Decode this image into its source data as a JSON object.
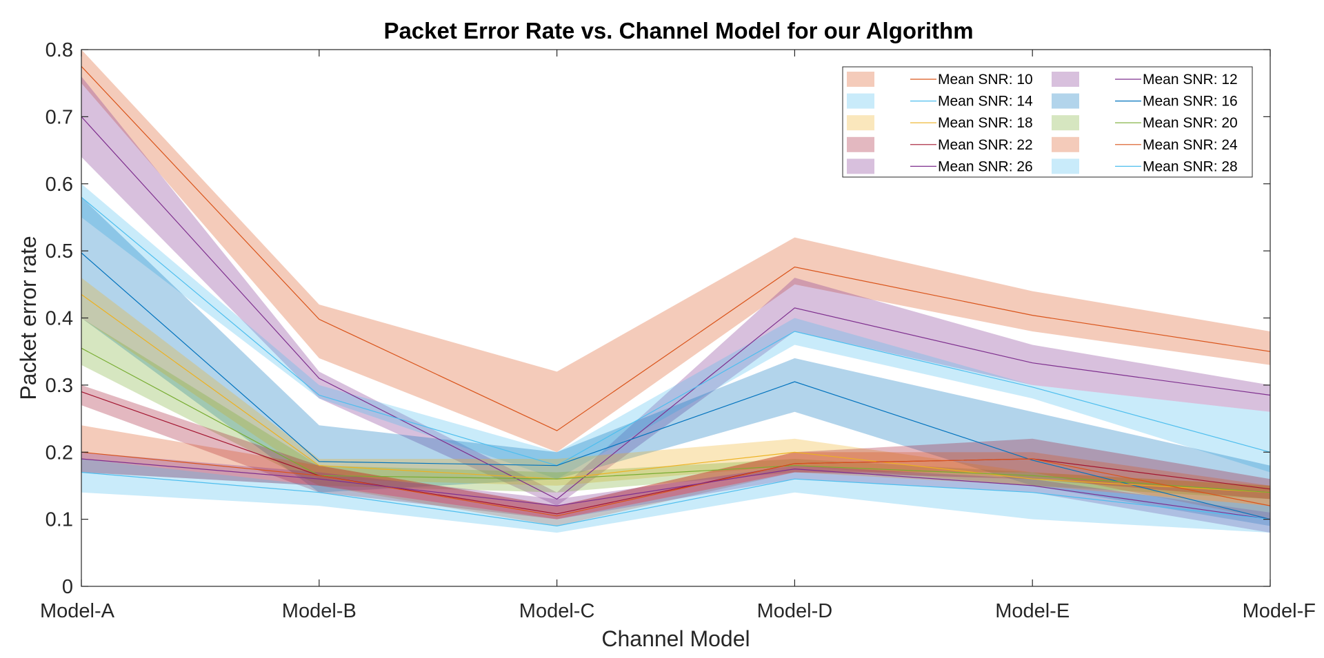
{
  "chart_data": {
    "type": "line",
    "title": "Packet Error Rate vs. Channel Model for our Algorithm",
    "xlabel": "Channel Model",
    "ylabel": "Packet error rate",
    "categories": [
      "Model-A",
      "Model-B",
      "Model-C",
      "Model-D",
      "Model-E",
      "Model-F"
    ],
    "ylim": [
      0,
      0.8
    ],
    "yticks": [
      "0",
      "0.1",
      "0.2",
      "0.3",
      "0.4",
      "0.5",
      "0.6",
      "0.7",
      "0.8"
    ],
    "grid": false,
    "legend_position": "top-right",
    "legend_note": "Each series has a shaded band (range) and a mean line",
    "series": [
      {
        "name": "Mean SNR: 10",
        "color": "#D95319",
        "values": [
          0.775,
          0.398,
          0.232,
          0.476,
          0.404,
          0.35
        ],
        "upper": [
          0.8,
          0.42,
          0.32,
          0.52,
          0.44,
          0.38
        ],
        "lower": [
          0.75,
          0.34,
          0.2,
          0.45,
          0.38,
          0.33
        ]
      },
      {
        "name": "Mean SNR: 12",
        "color": "#7E2F8E",
        "values": [
          0.7,
          0.31,
          0.13,
          0.415,
          0.333,
          0.285
        ],
        "upper": [
          0.76,
          0.32,
          0.14,
          0.46,
          0.36,
          0.3
        ],
        "lower": [
          0.64,
          0.28,
          0.12,
          0.38,
          0.3,
          0.26
        ]
      },
      {
        "name": "Mean SNR: 14",
        "color": "#4DBEEE",
        "values": [
          0.58,
          0.285,
          0.18,
          0.38,
          0.297,
          0.2
        ],
        "upper": [
          0.6,
          0.3,
          0.2,
          0.4,
          0.3,
          0.26
        ],
        "lower": [
          0.55,
          0.28,
          0.16,
          0.36,
          0.28,
          0.17
        ]
      },
      {
        "name": "Mean SNR: 16",
        "color": "#0072BD",
        "values": [
          0.497,
          0.186,
          0.18,
          0.305,
          0.188,
          0.1
        ],
        "upper": [
          0.58,
          0.24,
          0.2,
          0.34,
          0.26,
          0.18
        ],
        "lower": [
          0.4,
          0.14,
          0.16,
          0.26,
          0.15,
          0.09
        ]
      },
      {
        "name": "Mean SNR: 18",
        "color": "#EDB120",
        "values": [
          0.435,
          0.18,
          0.16,
          0.2,
          0.16,
          0.14
        ],
        "upper": [
          0.46,
          0.19,
          0.19,
          0.22,
          0.17,
          0.15
        ],
        "lower": [
          0.4,
          0.16,
          0.15,
          0.18,
          0.15,
          0.12
        ]
      },
      {
        "name": "Mean SNR: 20",
        "color": "#77AC30",
        "values": [
          0.355,
          0.165,
          0.16,
          0.18,
          0.165,
          0.14
        ],
        "upper": [
          0.4,
          0.18,
          0.17,
          0.19,
          0.17,
          0.15
        ],
        "lower": [
          0.33,
          0.15,
          0.14,
          0.17,
          0.15,
          0.13
        ]
      },
      {
        "name": "Mean SNR: 22",
        "color": "#A2142F",
        "values": [
          0.29,
          0.165,
          0.108,
          0.183,
          0.19,
          0.145
        ],
        "upper": [
          0.3,
          0.18,
          0.12,
          0.2,
          0.22,
          0.16
        ],
        "lower": [
          0.27,
          0.14,
          0.1,
          0.17,
          0.16,
          0.13
        ]
      },
      {
        "name": "Mean SNR: 24",
        "color": "#D95319",
        "values": [
          0.2,
          0.165,
          0.105,
          0.183,
          0.19,
          0.12
        ],
        "upper": [
          0.24,
          0.18,
          0.12,
          0.2,
          0.2,
          0.15
        ],
        "lower": [
          0.17,
          0.15,
          0.09,
          0.17,
          0.17,
          0.1
        ]
      },
      {
        "name": "Mean SNR: 26",
        "color": "#7E2F8E",
        "values": [
          0.19,
          0.16,
          0.12,
          0.175,
          0.15,
          0.1
        ],
        "upper": [
          0.2,
          0.17,
          0.13,
          0.18,
          0.16,
          0.11
        ],
        "lower": [
          0.17,
          0.15,
          0.1,
          0.16,
          0.14,
          0.08
        ]
      },
      {
        "name": "Mean SNR: 28",
        "color": "#4DBEEE",
        "values": [
          0.17,
          0.14,
          0.09,
          0.16,
          0.14,
          0.1
        ],
        "upper": [
          0.19,
          0.15,
          0.1,
          0.17,
          0.15,
          0.12
        ],
        "lower": [
          0.14,
          0.12,
          0.08,
          0.14,
          0.1,
          0.08
        ]
      }
    ]
  }
}
